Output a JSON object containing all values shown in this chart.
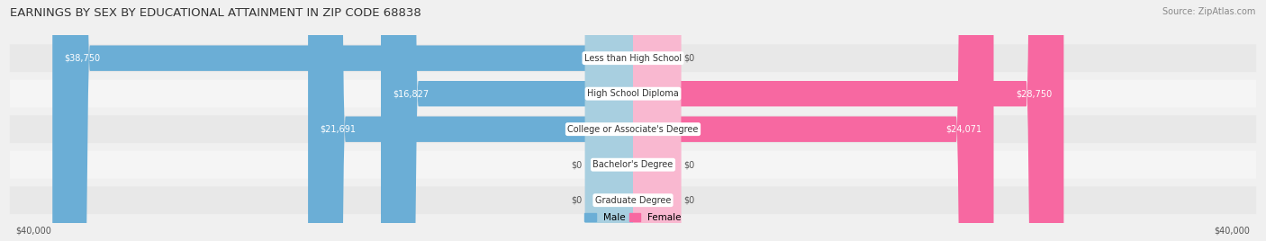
{
  "title": "EARNINGS BY SEX BY EDUCATIONAL ATTAINMENT IN ZIP CODE 68838",
  "source": "Source: ZipAtlas.com",
  "categories": [
    "Less than High School",
    "High School Diploma",
    "College or Associate's Degree",
    "Bachelor's Degree",
    "Graduate Degree"
  ],
  "male_values": [
    38750,
    16827,
    21691,
    0,
    0
  ],
  "female_values": [
    0,
    28750,
    24071,
    0,
    0
  ],
  "male_color": "#6baed6",
  "female_color": "#f768a1",
  "male_color_light": "#a8cfe0",
  "female_color_light": "#f9b8d0",
  "axis_max": 40000,
  "bg_color": "#f0f0f0",
  "row_bg_even": "#e8e8e8",
  "row_bg_odd": "#f5f5f5",
  "title_fontsize": 9.5,
  "source_fontsize": 7,
  "label_fontsize": 7,
  "value_fontsize": 7,
  "legend_fontsize": 7.5,
  "zero_stub": 3200
}
